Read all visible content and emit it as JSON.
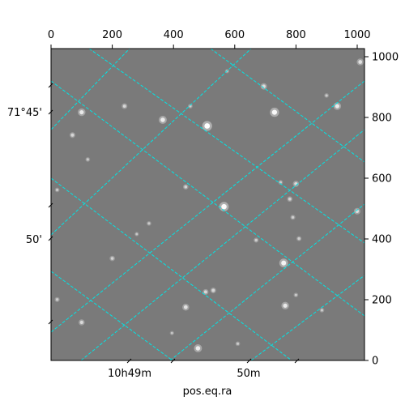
{
  "chart_data": {
    "type": "scatter",
    "description_kind": "astronomical image with WCS coordinate grid overlay",
    "xlabel": "pos.eq.ra",
    "top_axis_ticks": [
      "0",
      "200",
      "400",
      "600",
      "800",
      "1000"
    ],
    "right_axis_ticks": [
      "0",
      "200",
      "400",
      "600",
      "800",
      "1000"
    ],
    "left_axis_ticks": [
      "71°45'",
      "50'"
    ],
    "bottom_axis_ticks": [
      "10h49m",
      "50m"
    ],
    "pixel_xlim": [
      0,
      1024
    ],
    "pixel_ylim": [
      0,
      1024
    ],
    "grid": true,
    "grid_color": "#00e5e5",
    "image_background": "#7a7a7a",
    "stars": [
      {
        "x": 510,
        "y": 770,
        "brightness": 1.0
      },
      {
        "x": 565,
        "y": 505,
        "brightness": 0.95
      },
      {
        "x": 730,
        "y": 815,
        "brightness": 0.9
      },
      {
        "x": 760,
        "y": 320,
        "brightness": 0.85
      },
      {
        "x": 365,
        "y": 790,
        "brightness": 0.75
      },
      {
        "x": 100,
        "y": 815,
        "brightness": 0.7
      },
      {
        "x": 935,
        "y": 835,
        "brightness": 0.7
      },
      {
        "x": 765,
        "y": 180,
        "brightness": 0.7
      },
      {
        "x": 480,
        "y": 40,
        "brightness": 0.75
      },
      {
        "x": 440,
        "y": 175,
        "brightness": 0.6
      },
      {
        "x": 1010,
        "y": 980,
        "brightness": 0.6
      },
      {
        "x": 695,
        "y": 900,
        "brightness": 0.55
      },
      {
        "x": 1000,
        "y": 490,
        "brightness": 0.55
      },
      {
        "x": 800,
        "y": 580,
        "brightness": 0.5
      },
      {
        "x": 240,
        "y": 835,
        "brightness": 0.45
      },
      {
        "x": 70,
        "y": 740,
        "brightness": 0.45
      },
      {
        "x": 100,
        "y": 125,
        "brightness": 0.5
      },
      {
        "x": 530,
        "y": 230,
        "brightness": 0.45
      },
      {
        "x": 505,
        "y": 225,
        "brightness": 0.45
      },
      {
        "x": 200,
        "y": 335,
        "brightness": 0.4
      },
      {
        "x": 440,
        "y": 570,
        "brightness": 0.4
      },
      {
        "x": 780,
        "y": 530,
        "brightness": 0.4
      },
      {
        "x": 790,
        "y": 470,
        "brightness": 0.35
      },
      {
        "x": 810,
        "y": 400,
        "brightness": 0.35
      },
      {
        "x": 670,
        "y": 395,
        "brightness": 0.35
      },
      {
        "x": 20,
        "y": 200,
        "brightness": 0.35
      },
      {
        "x": 20,
        "y": 560,
        "brightness": 0.3
      },
      {
        "x": 120,
        "y": 660,
        "brightness": 0.3
      },
      {
        "x": 885,
        "y": 165,
        "brightness": 0.3
      },
      {
        "x": 800,
        "y": 215,
        "brightness": 0.3
      },
      {
        "x": 610,
        "y": 55,
        "brightness": 0.3
      },
      {
        "x": 320,
        "y": 450,
        "brightness": 0.3
      },
      {
        "x": 455,
        "y": 835,
        "brightness": 0.3
      },
      {
        "x": 750,
        "y": 585,
        "brightness": 0.3
      },
      {
        "x": 575,
        "y": 950,
        "brightness": 0.25
      },
      {
        "x": 900,
        "y": 870,
        "brightness": 0.3
      },
      {
        "x": 395,
        "y": 90,
        "brightness": 0.25
      },
      {
        "x": 280,
        "y": 415,
        "brightness": 0.25
      }
    ]
  }
}
